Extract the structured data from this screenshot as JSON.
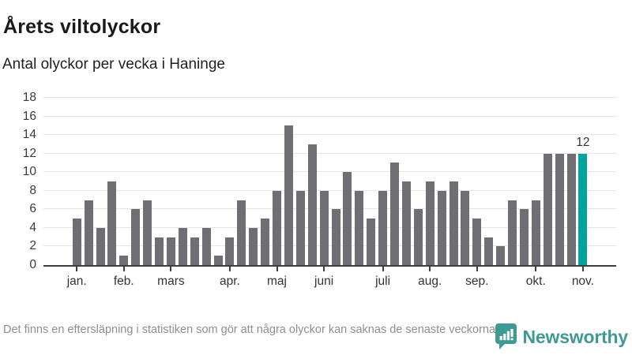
{
  "title": "Årets viltolyckor",
  "subtitle": "Antal olyckor per vecka i Haninge",
  "footer": {
    "note": "Det finns en eftersläpning i statistiken som gör att några olyckor kan saknas de senaste veckorna.",
    "brand": "Newsworthy"
  },
  "colors": {
    "bar": "#6e6e73",
    "highlight": "#00a49c",
    "brand": "#3e9b94",
    "grid": "#e4e4e4",
    "axis": "#3f3f3f"
  },
  "chart_data": {
    "type": "bar",
    "title": "Årets viltolyckor",
    "subtitle": "Antal olyckor per vecka i Haninge",
    "x_unit": "vecka (week of year)",
    "week_start": 1,
    "values": [
      5,
      7,
      4,
      9,
      1,
      6,
      7,
      3,
      3,
      4,
      3,
      4,
      1,
      3,
      7,
      4,
      5,
      8,
      15,
      8,
      13,
      8,
      6,
      10,
      8,
      5,
      8,
      11,
      9,
      6,
      9,
      8,
      9,
      8,
      5,
      3,
      2,
      7,
      6,
      7,
      12,
      12,
      12,
      12
    ],
    "highlight_index": 43,
    "highlight_label": "12",
    "ylim": [
      0,
      18
    ],
    "yticks": [
      0,
      2,
      4,
      6,
      8,
      10,
      12,
      14,
      16,
      18
    ],
    "grid": true,
    "legend": "none",
    "month_ticks": [
      {
        "label": "jan.",
        "bar": 0
      },
      {
        "label": "feb.",
        "bar": 4
      },
      {
        "label": "mars",
        "bar": 8
      },
      {
        "label": "apr.",
        "bar": 13
      },
      {
        "label": "maj",
        "bar": 17
      },
      {
        "label": "juni",
        "bar": 21
      },
      {
        "label": "juli",
        "bar": 26
      },
      {
        "label": "aug.",
        "bar": 30
      },
      {
        "label": "sep.",
        "bar": 34
      },
      {
        "label": "okt.",
        "bar": 39
      },
      {
        "label": "nov.",
        "bar": 43
      }
    ]
  }
}
